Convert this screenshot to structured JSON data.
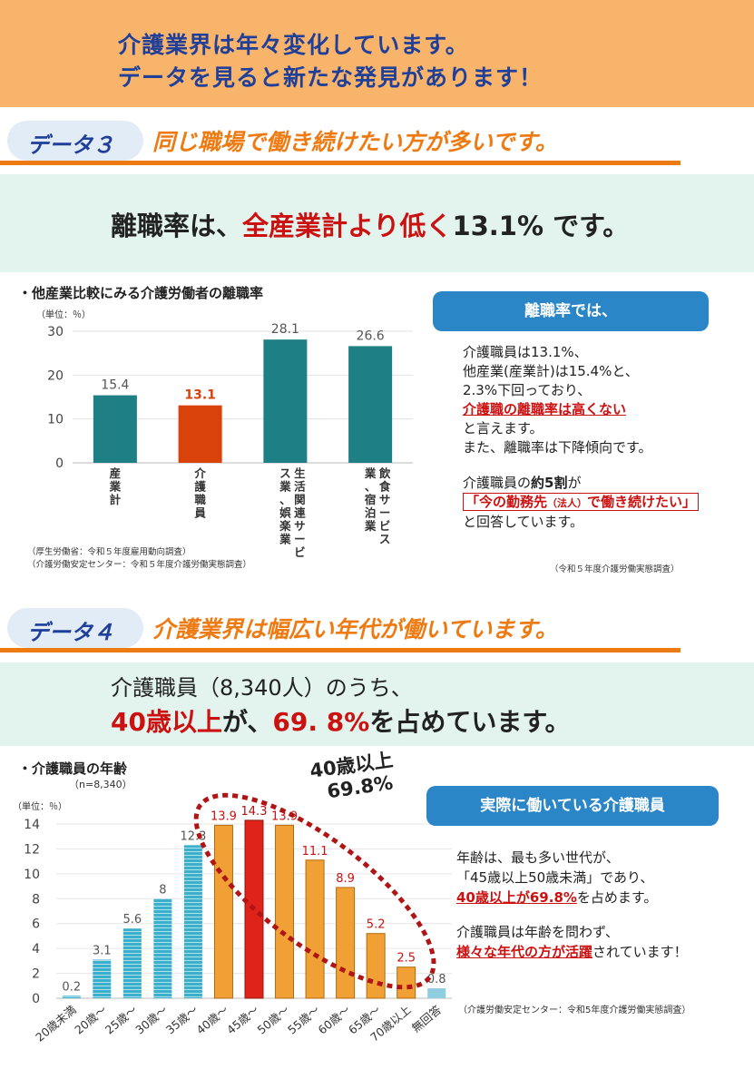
{
  "banner": {
    "line1": "介護業界は年々変化しています。",
    "line2": "データを見ると新たな発見があります！"
  },
  "section3": {
    "tag": "データ３",
    "title": "同じ職場で働き続けたい方が多いです。",
    "headline": {
      "pre": "離職率は、",
      "highlight": "全産業計より低く",
      "post": "13.1% です。"
    },
    "chart_title": "・他産業比較にみる介護労働者の離職率",
    "unit": "（単位：％）",
    "source_line1": "（厚生労働省：令和５年度雇用動向調査）",
    "source_line2": "（介護労働安定センター：令和５年度介護労働実態調査）",
    "callout": "離職率では、",
    "text": {
      "l1": "介護職員は13.1%、",
      "l2": "他産業(産業計)は15.4%と、",
      "l3": "2.3%下回っており、",
      "l4": "介護職の離職率は高くない",
      "l5": "と言えます。",
      "l6": "また、離職率は下降傾向です。",
      "l7_pre": "介護職員の",
      "l7_bold": "約5割",
      "l7_post": "が",
      "l8_a": "「今の勤務先",
      "l8_b": "（法人）",
      "l8_c": "で働き続けたい」",
      "l9": "と回答しています。"
    },
    "text_source": "（令和５年度介護労働実態調査）"
  },
  "section4": {
    "tag": "データ４",
    "title": "介護業界は幅広い年代が働いています。",
    "headline": {
      "l1": "介護職員（8,340人）のうち、",
      "h1": "40歳以上",
      "m1": "が、",
      "h2": "69. 8%",
      "m2": "を占めています。"
    },
    "chart_title": "・介護職員の年齢",
    "n_label": "（n=8,340）",
    "unit": "（単位：％）",
    "annotation_l1": "40歳以上",
    "annotation_l2": "69.8%",
    "callout": "実際に働いている介護職員",
    "text": {
      "l1": "年齢は、最も多い世代が、",
      "l2": "「45歳以上50歳未満」であり、",
      "l3": "40歳以上が69.8%",
      "l3_post": "を占めます。",
      "l4": "介護職員は年齢を問わず、",
      "l5": "様々な年代の方が活躍",
      "l5_post": "されています！"
    },
    "source": "（介護労働安定センター：令和5年度介護労働実態調査）"
  },
  "colors": {
    "teal": "#1e7f84",
    "red_bar": "#d9420b",
    "orange": "#ee7a12",
    "navy": "#1f3f99",
    "accent_red": "#cc1111",
    "light_blue": "#3bb0cc",
    "age_orange": "#f0a035",
    "age_red": "#e0231a"
  },
  "chart_data": [
    {
      "type": "bar",
      "title": "・他産業比較にみる介護労働者の離職率",
      "ylabel": "（単位：％）",
      "ylim": [
        0,
        30
      ],
      "yticks": [
        0,
        10,
        20,
        30
      ],
      "categories": [
        "産業計",
        "介護職員",
        "生活関連サービス業、娯楽業",
        "飲食サービス業、宿泊業"
      ],
      "category_lines": [
        [
          "産",
          "業",
          "計"
        ],
        [
          "介",
          "護",
          "職",
          "員"
        ],
        [
          "生",
          "活",
          "関",
          "連",
          "サ",
          "ー",
          "ビ",
          "ス",
          "業",
          "、",
          "娯",
          "楽",
          "業"
        ],
        [
          "飲",
          "食",
          "サ",
          "ー",
          "ビ",
          "ス",
          "業",
          "、",
          "宿",
          "泊",
          "業"
        ]
      ],
      "values": [
        15.4,
        13.1,
        28.1,
        26.6
      ],
      "labels": [
        "15.4",
        "13.1",
        "28.1",
        "26.6"
      ],
      "grid": true
    },
    {
      "type": "bar",
      "title": "・介護職員の年齢",
      "ylabel": "（単位：％）",
      "ylim": [
        0,
        14
      ],
      "yticks": [
        0,
        2,
        4,
        6,
        8,
        10,
        12,
        14
      ],
      "categories": [
        "20歳未満",
        "20歳～",
        "25歳～",
        "30歳～",
        "35歳～",
        "40歳～",
        "45歳～",
        "50歳～",
        "55歳～",
        "60歳～",
        "65歳～",
        "70歳以上",
        "無回答"
      ],
      "values": [
        0.2,
        3.1,
        5.6,
        8,
        12.3,
        13.9,
        14.3,
        13.9,
        11.1,
        8.9,
        5.2,
        2.5,
        0.8
      ],
      "labels": [
        "0.2",
        "3.1",
        "5.6",
        "8",
        "12.3",
        "13.9",
        "14.3",
        "13.9",
        "11.1",
        "8.9",
        "5.2",
        "2.5",
        "0.8"
      ],
      "grid": true
    }
  ]
}
